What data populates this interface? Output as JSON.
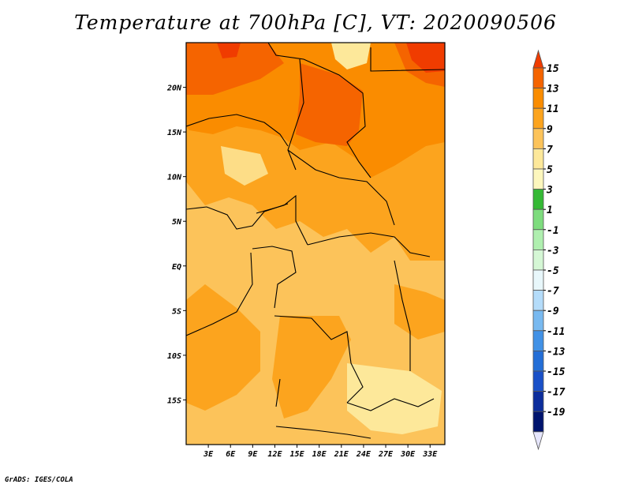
{
  "title": "Temperature at 700hPa [C], VT: 2020090506",
  "credit": "GrADS: IGES/COLA",
  "map": {
    "lon_range": [
      0,
      35
    ],
    "lat_range": [
      -20,
      25
    ],
    "lon_ticks": [
      "3E",
      "6E",
      "9E",
      "12E",
      "15E",
      "18E",
      "21E",
      "24E",
      "27E",
      "30E",
      "33E"
    ],
    "lat_ticks": [
      "20N",
      "15N",
      "10N",
      "5N",
      "EQ",
      "5S",
      "10S",
      "15S"
    ]
  },
  "colorbar": {
    "labels": [
      "15",
      "13",
      "11",
      "9",
      "7",
      "5",
      "3",
      "1",
      "-1",
      "-3",
      "-5",
      "-7",
      "-9",
      "-11",
      "-13",
      "-15",
      "-17",
      "-19"
    ],
    "colors": [
      "#f03c00",
      "#f56400",
      "#fa8c00",
      "#fca41e",
      "#fcc35a",
      "#fde89a",
      "#fdf7bd",
      "#35b935",
      "#7ddc7d",
      "#afefaf",
      "#d5f7d5",
      "#e8f7fb",
      "#b4dcfa",
      "#78b9f0",
      "#4191e6",
      "#236ed7",
      "#1950c8",
      "#0c2d9c",
      "#00146e",
      "#e6e6fc"
    ]
  }
}
